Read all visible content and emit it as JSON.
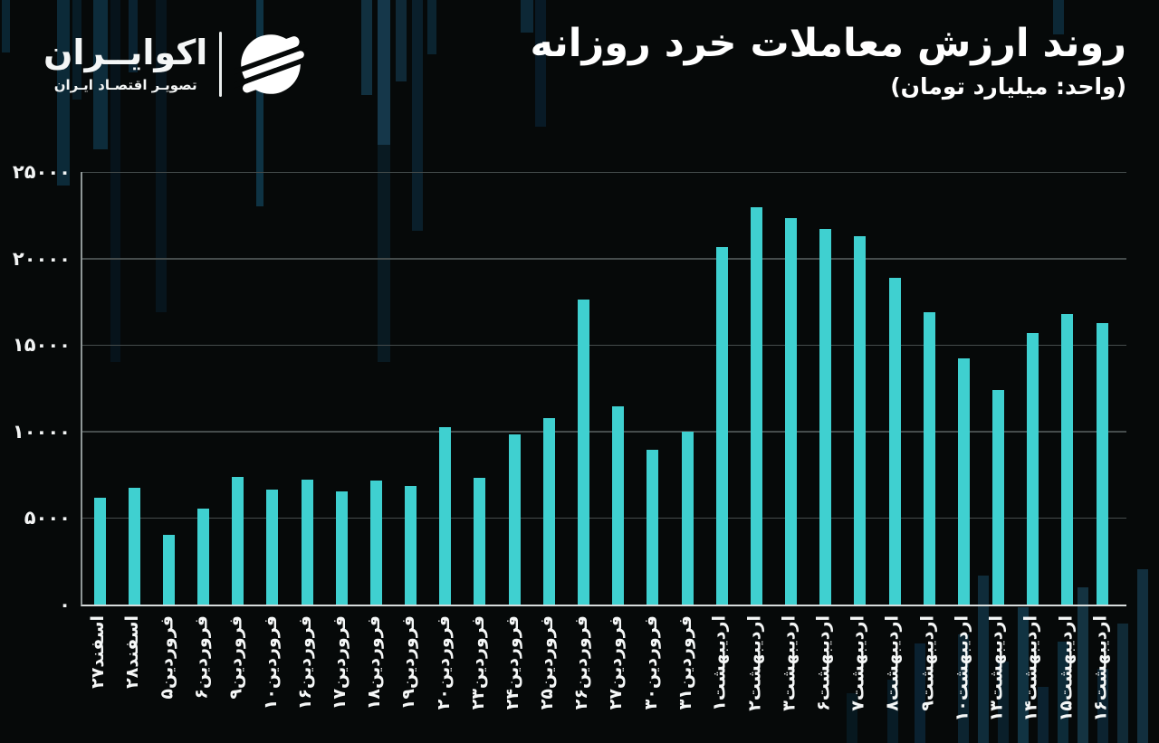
{
  "header": {
    "logo": {
      "brand_name": "اکوایــران",
      "tagline": "تصویـر اقتصـاد ایـران"
    },
    "title": "روند ارزش معاملات خرد روزانه",
    "subtitle": "(واحد: میلیارد تومان)"
  },
  "colors": {
    "bar": "#3fd0d0",
    "background": "#060909",
    "text": "#ffffff"
  },
  "chart_data": {
    "type": "bar",
    "title": "روند ارزش معاملات خرد روزانه",
    "unit_label": "میلیارد تومان",
    "xlabel": "",
    "ylabel": "",
    "grid": true,
    "ylim": [
      0,
      25000
    ],
    "ytick_labels": [
      "۰",
      "۵۰۰۰",
      "۱۰۰۰۰",
      "۱۵۰۰۰",
      "۲۰۰۰۰",
      "۲۵۰۰۰"
    ],
    "ytick_values": [
      0,
      5000,
      10000,
      15000,
      20000,
      25000
    ],
    "categories": [
      "اسفند۲۷",
      "اسفند۲۸",
      "فروردین۵",
      "فروردین۶",
      "فروردین۹",
      "فروردین۱۰",
      "فروردین۱۶",
      "فروردین۱۷",
      "فروردین۱۸",
      "فروردین۱۹",
      "فروردین۲۰",
      "فروردین۲۳",
      "فروردین۲۴",
      "فروردین۲۵",
      "فروردین۲۶",
      "فروردین۲۷",
      "فروردین۳۰",
      "فروردین۳۱",
      "اردیبهشت۱",
      "اردیبهشت۲",
      "اردیبهشت۳",
      "اردیبهشت۶",
      "اردیبهشت۷",
      "اردیبهشت۸",
      "اردیبهشت۹",
      "اردیبهشت۱۰",
      "اردیبهشت۱۳",
      "اردیبهشت۱۴",
      "اردیبهشت۱۵",
      "اردیبهشت۱۶"
    ],
    "values": [
      6150,
      6750,
      4050,
      5550,
      7350,
      6650,
      7200,
      6550,
      7150,
      6850,
      10250,
      7300,
      9850,
      10750,
      17650,
      11450,
      8950,
      10000,
      20650,
      22950,
      22350,
      21700,
      21300,
      18900,
      16900,
      14250,
      12400,
      15700,
      16800,
      16250
    ]
  }
}
